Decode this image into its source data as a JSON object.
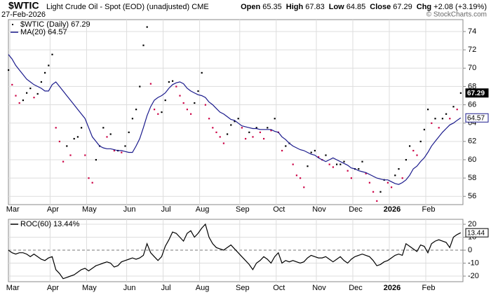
{
  "header": {
    "symbol": "$WTIC",
    "name": "Light Crude Oil - Spot (EOD) (unadjusted) CME",
    "date": "27-Feb-2026",
    "quote": [
      {
        "label": "Open",
        "value": "65.35"
      },
      {
        "label": "High",
        "value": "67.83"
      },
      {
        "label": "Low",
        "value": "64.85"
      },
      {
        "label": "Close",
        "value": "67.29"
      },
      {
        "label": "Chg",
        "value": "+2.08 (+3.19%)"
      }
    ],
    "watermark": "© StockCharts.com"
  },
  "chart_data": [
    {
      "type": "dot",
      "ylim": [
        55.1,
        75.3
      ],
      "yticks": [
        56,
        58,
        60,
        62,
        64,
        66,
        68,
        70,
        72,
        74
      ],
      "grid": true,
      "up_color": "#000000",
      "down_color": "#cc0044",
      "categories": [
        null,
        "Mar",
        null,
        null,
        null,
        null,
        null,
        null,
        null,
        null,
        null,
        null,
        "Apr",
        null,
        null,
        null,
        null,
        null,
        null,
        null,
        null,
        null,
        "May",
        null,
        null,
        null,
        null,
        null,
        null,
        null,
        null,
        null,
        null,
        "Jun",
        null,
        null,
        null,
        null,
        null,
        null,
        null,
        null,
        null,
        "Jul",
        null,
        null,
        null,
        null,
        null,
        null,
        null,
        null,
        null,
        "Aug",
        null,
        null,
        null,
        null,
        null,
        null,
        null,
        null,
        null,
        null,
        "Sep",
        null,
        null,
        null,
        null,
        null,
        null,
        null,
        null,
        null,
        "Oct",
        null,
        null,
        null,
        null,
        null,
        null,
        null,
        null,
        null,
        null,
        "Nov",
        null,
        null,
        null,
        null,
        null,
        null,
        null,
        null,
        null,
        "Dec",
        null,
        null,
        null,
        null,
        null,
        null,
        null,
        null,
        null,
        "2026",
        null,
        null,
        null,
        null,
        null,
        null,
        null,
        null,
        null,
        "Feb",
        null,
        null,
        null,
        null,
        null,
        null,
        null,
        null,
        null
      ],
      "series": [
        {
          "name": "$WTIC (Daily) 67.29",
          "color": "#000000",
          "values": [
            69.8,
            68.2,
            67.0,
            66.2,
            66.5,
            67.3,
            67.8,
            66.8,
            67.2,
            68.5,
            69.5,
            70.3,
            71.5,
            63.5,
            62.0,
            59.8,
            61.5,
            60.5,
            62.3,
            62.5,
            63.5,
            60.5,
            58.0,
            57.5,
            60.0,
            61.5,
            63.5,
            62.5,
            62.8,
            61.0,
            61.0,
            60.8,
            61.5,
            63.0,
            64.5,
            65.5,
            68.0,
            72.5,
            74.5,
            68.3,
            65.5,
            65.0,
            65.2,
            66.5,
            68.5,
            68.6,
            68.0,
            67.0,
            66.2,
            65.5,
            65.0,
            66.2,
            67.5,
            69.5,
            66.0,
            64.5,
            63.5,
            63.0,
            62.5,
            61.8,
            62.8,
            63.8,
            64.2,
            64.5,
            63.5,
            62.3,
            63.0,
            62.5,
            63.5,
            63.0,
            62.3,
            63.5,
            63.2,
            64.5,
            63.0,
            61.0,
            61.5,
            61.8,
            59.5,
            58.3,
            58.0,
            57.0,
            59.3,
            60.8,
            61.0,
            60.3,
            60.0,
            60.5,
            59.5,
            59.2,
            59.5,
            59.5,
            59.8,
            58.8,
            58.0,
            59.0,
            59.0,
            59.8,
            58.5,
            57.5,
            56.5,
            55.5,
            56.5,
            57.8,
            57.5,
            57.0,
            58.3,
            59.0,
            58.0,
            60.0,
            61.5,
            61.0,
            60.5,
            62.0,
            63.3,
            65.5,
            64.0,
            64.5,
            63.5,
            64.5,
            65.0,
            64.5,
            65.8,
            65.5,
            67.29
          ]
        },
        {
          "name": "MA(20) 64.57",
          "color": "#1a1a8c",
          "type": "line",
          "values": [
            71.5,
            71.0,
            70.3,
            69.8,
            69.3,
            68.8,
            68.5,
            68.2,
            68.0,
            67.8,
            67.5,
            67.5,
            68.2,
            68.5,
            68.0,
            67.5,
            67.0,
            66.5,
            66.0,
            65.5,
            65.0,
            64.5,
            63.5,
            62.5,
            62.0,
            61.5,
            61.3,
            61.2,
            61.2,
            61.1,
            61.0,
            61.0,
            60.9,
            60.8,
            60.8,
            61.5,
            62.3,
            63.5,
            64.8,
            65.8,
            66.5,
            66.8,
            67.0,
            67.3,
            67.8,
            68.2,
            68.4,
            68.5,
            68.3,
            67.8,
            67.5,
            67.3,
            67.1,
            67.0,
            66.8,
            66.3,
            66.0,
            65.6,
            65.2,
            65.0,
            64.7,
            64.4,
            64.3,
            64.0,
            63.7,
            63.6,
            63.5,
            63.4,
            63.4,
            63.3,
            63.3,
            63.3,
            63.3,
            63.1,
            63.0,
            62.5,
            62.2,
            61.8,
            61.5,
            61.3,
            61.1,
            61.0,
            60.8,
            60.6,
            60.5,
            60.2,
            60.0,
            59.8,
            60.0,
            60.2,
            60.0,
            59.8,
            59.6,
            59.4,
            59.1,
            59.0,
            58.8,
            58.7,
            58.6,
            58.4,
            58.2,
            58.0,
            57.9,
            57.8,
            57.8,
            57.6,
            57.4,
            57.3,
            57.5,
            57.8,
            58.3,
            59.0,
            59.3,
            59.8,
            60.2,
            60.8,
            61.5,
            62.0,
            62.5,
            63.0,
            63.4,
            63.8,
            64.0,
            64.3,
            64.57
          ]
        }
      ]
    },
    {
      "type": "line",
      "ylim": [
        -24.3,
        23.8
      ],
      "yticks": [
        -20,
        -10,
        0,
        10,
        20
      ],
      "grid": true,
      "categories": [
        null,
        "Mar",
        null,
        null,
        null,
        null,
        null,
        null,
        null,
        null,
        null,
        null,
        "Apr",
        null,
        null,
        null,
        null,
        null,
        null,
        null,
        null,
        null,
        "May",
        null,
        null,
        null,
        null,
        null,
        null,
        null,
        null,
        null,
        null,
        "Jun",
        null,
        null,
        null,
        null,
        null,
        null,
        null,
        null,
        null,
        "Jul",
        null,
        null,
        null,
        null,
        null,
        null,
        null,
        null,
        null,
        "Aug",
        null,
        null,
        null,
        null,
        null,
        null,
        null,
        null,
        null,
        null,
        "Sep",
        null,
        null,
        null,
        null,
        null,
        null,
        null,
        null,
        null,
        "Oct",
        null,
        null,
        null,
        null,
        null,
        null,
        null,
        null,
        null,
        null,
        "Nov",
        null,
        null,
        null,
        null,
        null,
        null,
        null,
        null,
        null,
        "Dec",
        null,
        null,
        null,
        null,
        null,
        null,
        null,
        null,
        null,
        "2026",
        null,
        null,
        null,
        null,
        null,
        null,
        null,
        null,
        null,
        "Feb",
        null,
        null,
        null,
        null,
        null,
        null,
        null,
        null,
        null
      ],
      "series": [
        {
          "name": "ROC(60) 13.44%",
          "color": "#000000",
          "values": [
            0,
            -2,
            -3,
            -2,
            -2,
            -3,
            -5,
            -3,
            -5,
            -7,
            -8,
            -6,
            -5,
            -15,
            -18,
            -22,
            -21,
            -20,
            -19,
            -17,
            -15,
            -14,
            -16,
            -14,
            -12,
            -11,
            -10,
            -9,
            -10,
            -13,
            -12,
            -9,
            -8,
            -7,
            -6,
            -7,
            -6,
            -4,
            5,
            -2,
            -5,
            -8,
            -5,
            3,
            8,
            14,
            13,
            10,
            7,
            13,
            15,
            10,
            13,
            17,
            20,
            10,
            5,
            2,
            1,
            0,
            2,
            4,
            1,
            -2,
            -5,
            -8,
            -11,
            -15,
            -10,
            -8,
            -5,
            -7,
            -10,
            -5,
            -2,
            -10,
            -8,
            -9,
            -8,
            -9,
            -10,
            -9,
            -6,
            -4,
            -5,
            -6,
            -6,
            -5,
            -7,
            -9,
            -7,
            -5,
            -8,
            -10,
            -7,
            -5,
            -4,
            -3,
            -4,
            -5,
            -8,
            -12,
            -11,
            -9,
            -8,
            -6,
            -4,
            -3,
            -4,
            5,
            3,
            1,
            -1,
            4,
            3,
            -2,
            5,
            7,
            8,
            7,
            6,
            2,
            10,
            12,
            13.44
          ]
        }
      ]
    }
  ]
}
